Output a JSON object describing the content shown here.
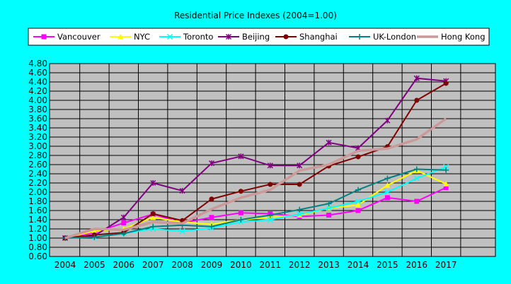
{
  "chart_data": {
    "type": "line",
    "title": "Residential Price Indexes (2004=1.00)",
    "xlabel": "",
    "ylabel": "",
    "x": [
      "2004",
      "2005",
      "2006",
      "2007",
      "2008",
      "2009",
      "2010",
      "2011",
      "2012",
      "2013",
      "2014",
      "2015",
      "2016",
      "2017"
    ],
    "ylim": [
      0.6,
      4.8
    ],
    "ytick_step": 0.2,
    "grid": true,
    "legend_position": "top",
    "colors": {
      "page_background": "#00ffff",
      "plot_background": "#c0c0c0",
      "gridline": "#000000"
    },
    "series": [
      {
        "name": "Vancouver",
        "color": "#ff00ff",
        "marker": "square",
        "values": [
          1.0,
          1.12,
          1.33,
          1.52,
          1.33,
          1.45,
          1.55,
          1.53,
          1.47,
          1.5,
          1.6,
          1.88,
          1.8,
          2.1
        ]
      },
      {
        "name": "NYC",
        "color": "#ffff00",
        "marker": "triangle",
        "values": [
          1.0,
          1.15,
          1.2,
          1.45,
          1.35,
          1.3,
          1.4,
          1.45,
          1.5,
          1.65,
          1.72,
          2.15,
          2.47,
          2.18
        ]
      },
      {
        "name": "Toronto",
        "color": "#00ffff",
        "marker": "x",
        "values": [
          1.0,
          1.03,
          1.1,
          1.2,
          1.15,
          1.22,
          1.35,
          1.4,
          1.52,
          1.65,
          1.8,
          2.0,
          2.3,
          2.55
        ]
      },
      {
        "name": "Beijing",
        "color": "#800080",
        "marker": "star",
        "values": [
          1.0,
          1.05,
          1.45,
          2.2,
          2.03,
          2.63,
          2.78,
          2.58,
          2.58,
          3.08,
          2.96,
          3.56,
          4.48,
          4.42
        ]
      },
      {
        "name": "Shanghai",
        "color": "#800000",
        "marker": "circle",
        "values": [
          1.0,
          1.07,
          1.12,
          1.53,
          1.38,
          1.85,
          2.02,
          2.17,
          2.17,
          2.57,
          2.77,
          2.99,
          4.0,
          4.37
        ]
      },
      {
        "name": "UK-London",
        "color": "#008080",
        "marker": "plus",
        "values": [
          1.0,
          1.02,
          1.1,
          1.25,
          1.28,
          1.25,
          1.4,
          1.5,
          1.62,
          1.75,
          2.05,
          2.3,
          2.5,
          2.48
        ]
      },
      {
        "name": "Hong Kong",
        "color": "#cc9999",
        "marker": "none",
        "values": [
          1.0,
          1.2,
          1.18,
          1.35,
          1.32,
          1.63,
          1.88,
          2.05,
          2.47,
          2.6,
          2.9,
          2.95,
          3.15,
          3.6
        ]
      }
    ]
  }
}
